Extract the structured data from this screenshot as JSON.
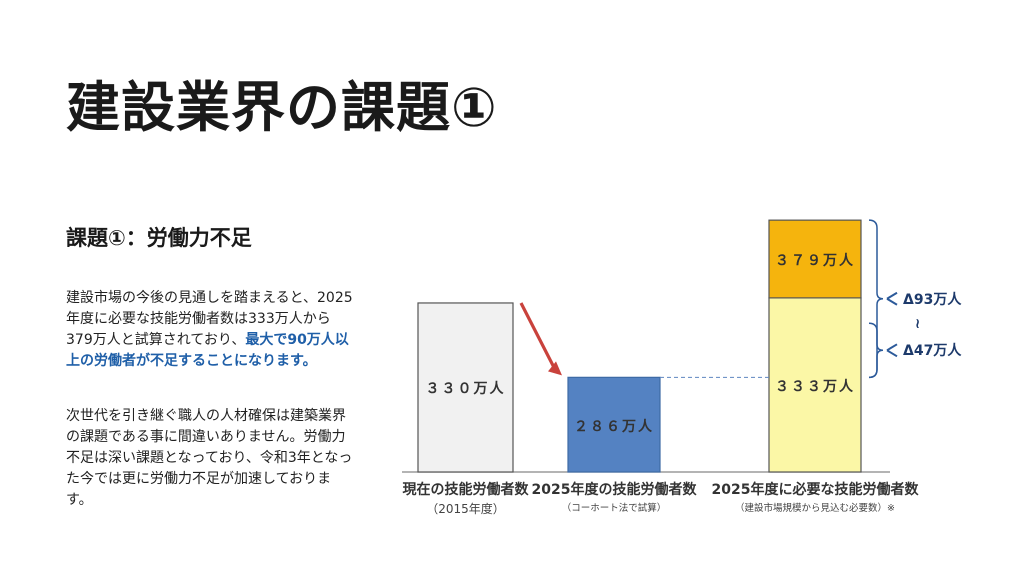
{
  "slide": {
    "title": "建設業界の課題①",
    "heading": "課題①：労働力不足",
    "paragraph1_before": "建設市場の今後の見通しを踏まえると、2025年度に必要な技能労働者数は333万人から379万人と試算されており、",
    "paragraph1_highlight": "最大で90万人以上の労働者が不足することになります。",
    "paragraph2": "次世代を引き継ぐ職人の人材確保は建築業界の課題である事に間違いありません。労働力不足は深い課題となっており、令和3年となった今では更に労働力不足が加速しております。"
  },
  "chart_data": {
    "type": "bar",
    "categories": [
      "現在の技能労働者数",
      "2025年度の技能労働者数",
      "2025年度に必要な技能労働者数"
    ],
    "category_notes": [
      "（2015年度）",
      "（コーホート法で試算）",
      "（建設市場規模から見込む必要数）※"
    ],
    "unit": "万人",
    "series": [
      {
        "values": [
          330,
          286,
          333
        ],
        "labels": [
          "３３０万人",
          "２８６万人",
          "３３３万人"
        ]
      },
      {
        "values": [
          0,
          0,
          46
        ],
        "labels": [
          "",
          "",
          "３７９万人"
        ]
      }
    ],
    "bar_colors": [
      "#f1f1f1",
      "#5482c2",
      "#fbf7a6"
    ],
    "stack_color": "#f5b40d",
    "deltas": [
      "Δ93万人",
      "Δ47万人"
    ],
    "tilde": "≀",
    "ylim": [
      230,
      385
    ]
  }
}
